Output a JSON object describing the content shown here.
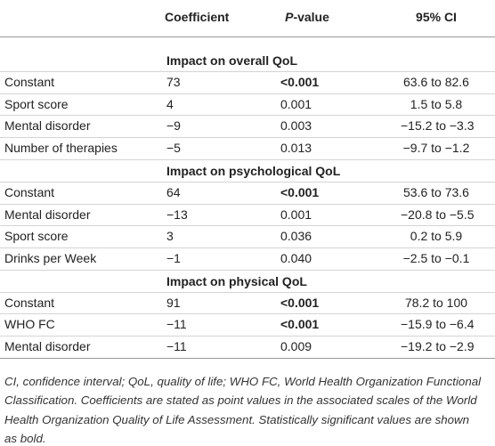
{
  "table": {
    "header": {
      "coefficient": "Coefficient",
      "p_value": {
        "italic": "P",
        "rest": "-value"
      },
      "ci": "95% CI"
    },
    "bold_columns": [
      2
    ],
    "sections": [
      {
        "title": "Impact on overall QoL",
        "rows": [
          {
            "cells": [
              "Constant",
              "73",
              "<0.001",
              "63.6 to 82.6"
            ],
            "significant": true
          },
          {
            "cells": [
              "Sport score",
              "4",
              "0.001",
              "1.5 to 5.8"
            ],
            "significant": false
          },
          {
            "cells": [
              "Mental disorder",
              "−9",
              "0.003",
              "−15.2 to −3.3"
            ],
            "significant": false
          },
          {
            "cells": [
              "Number of therapies",
              "−5",
              "0.013",
              "−9.7 to −1.2"
            ],
            "significant": false
          }
        ]
      },
      {
        "title": "Impact on psychological QoL",
        "rows": [
          {
            "cells": [
              "Constant",
              "64",
              "<0.001",
              "53.6 to 73.6"
            ],
            "significant": true
          },
          {
            "cells": [
              "Mental disorder",
              "−13",
              "0.001",
              "−20.8 to −5.5"
            ],
            "significant": false
          },
          {
            "cells": [
              "Sport score",
              "3",
              "0.036",
              "0.2 to 5.9"
            ],
            "significant": false
          },
          {
            "cells": [
              "Drinks per Week",
              "−1",
              "0.040",
              "−2.5 to −0.1"
            ],
            "significant": false
          }
        ]
      },
      {
        "title": "Impact on physical QoL",
        "rows": [
          {
            "cells": [
              "Constant",
              "91",
              "<0.001",
              "78.2 to 100"
            ],
            "significant": true
          },
          {
            "cells": [
              "WHO FC",
              "−11",
              "<0.001",
              "−15.9 to −6.4"
            ],
            "significant": true
          },
          {
            "cells": [
              "Mental disorder",
              "−11",
              "0.009",
              "−19.2 to −2.9"
            ],
            "significant": false
          }
        ]
      }
    ]
  },
  "footnote": {
    "lines": [
      "CI, confidence interval; QoL, quality of life; WHO FC, World Health Organization Functional",
      "Classification. Coefficients are stated as point values in the associated scales of the World",
      "Health Organization Quality of Life Assessment. Statistically significant values are shown",
      "as bold."
    ]
  }
}
